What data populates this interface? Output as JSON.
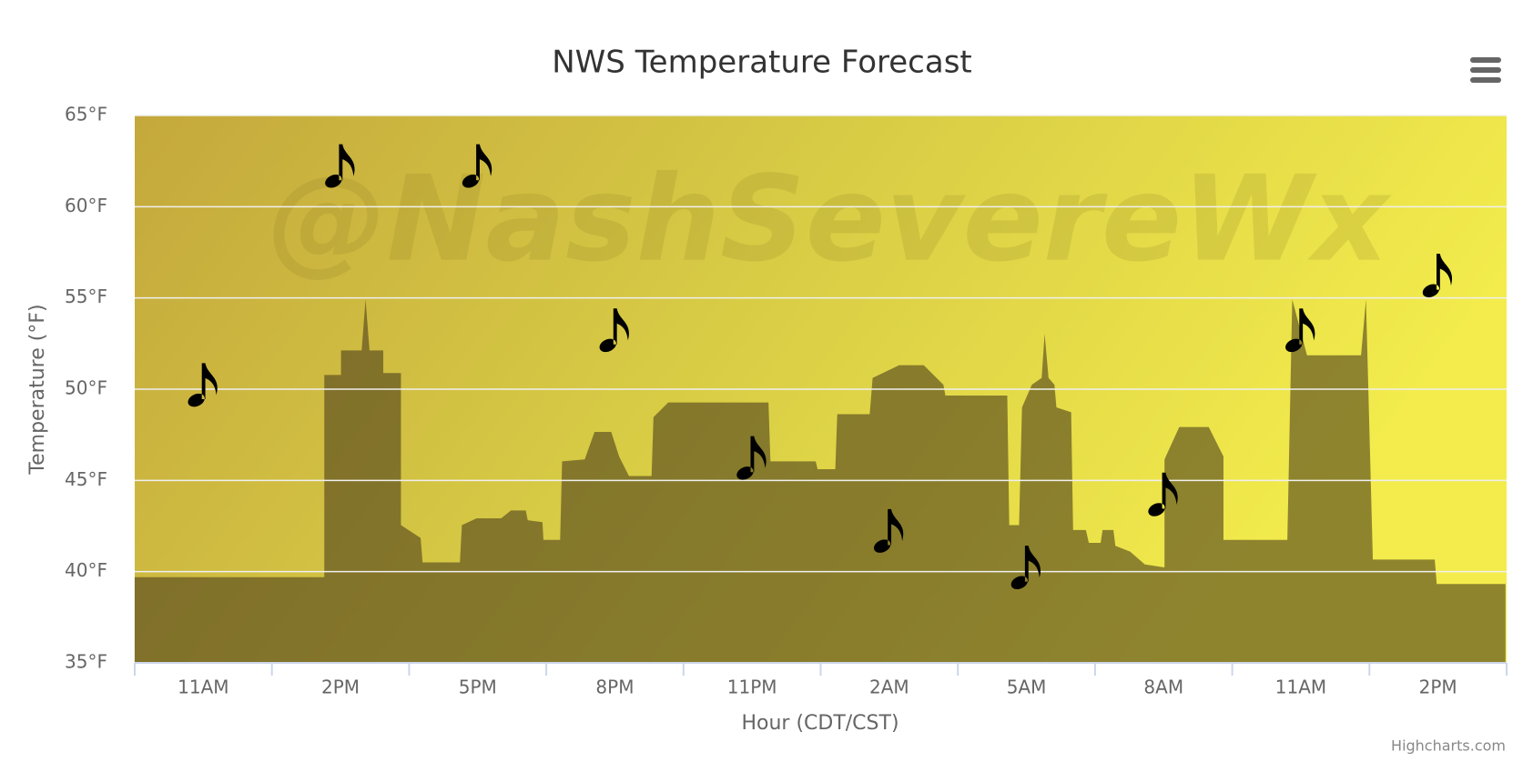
{
  "chart_data": {
    "type": "line",
    "title": "NWS Temperature Forecast",
    "x_label": "Hour (CDT/CST)",
    "y_label": "Temperature (°F)",
    "watermark": "@NashSevereWx",
    "credits": "Highcharts.com",
    "categories": [
      "11AM",
      "2PM",
      "5PM",
      "8PM",
      "11PM",
      "2AM",
      "5AM",
      "8AM",
      "11AM",
      "2PM"
    ],
    "series": [
      {
        "name": "Temperature",
        "color": "#000000",
        "values": [
          50,
          62,
          62,
          53,
          46,
          42,
          40,
          44,
          53,
          56
        ]
      }
    ],
    "ylim": [
      35,
      65
    ],
    "yticks": [
      {
        "value": 35,
        "label": "35°F"
      },
      {
        "value": 40,
        "label": "40°F"
      },
      {
        "value": 45,
        "label": "45°F"
      },
      {
        "value": 50,
        "label": "50°F"
      },
      {
        "value": 55,
        "label": "55°F"
      },
      {
        "value": 60,
        "label": "60°F"
      },
      {
        "value": 65,
        "label": "65°F"
      }
    ],
    "grid": true
  }
}
